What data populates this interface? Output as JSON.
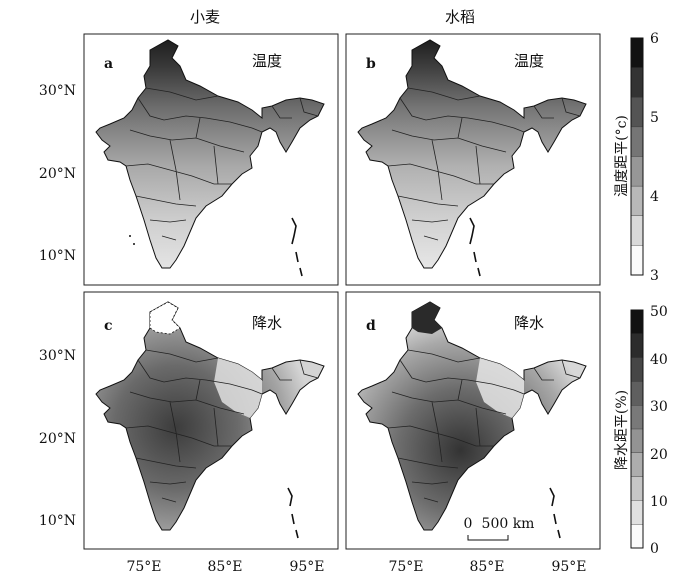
{
  "columns": [
    "小麦",
    "水稻"
  ],
  "panels": [
    {
      "letter": "a",
      "label": "温度",
      "variable": "temperature",
      "crop": "小麦"
    },
    {
      "letter": "b",
      "label": "温度",
      "variable": "temperature",
      "crop": "水稻"
    },
    {
      "letter": "c",
      "label": "降水",
      "variable": "precipitation",
      "crop": "小麦"
    },
    {
      "letter": "d",
      "label": "降水",
      "variable": "precipitation",
      "crop": "水稻"
    }
  ],
  "y_ticks": [
    "30°N",
    "20°N",
    "10°N"
  ],
  "x_ticks": [
    "75°E",
    "85°E",
    "95°E"
  ],
  "colorbars": [
    {
      "title": "温度距平(°c)",
      "ticks": [
        "6",
        "5",
        "4",
        "3"
      ],
      "min": 3,
      "max": 6,
      "steps": 8
    },
    {
      "title": "降水距平(%)",
      "ticks": [
        "50",
        "40",
        "30",
        "20",
        "10",
        "0"
      ],
      "min": 0,
      "max": 50,
      "steps": 10
    }
  ],
  "scale_bar": {
    "zero": "0",
    "label": "500 km"
  }
}
